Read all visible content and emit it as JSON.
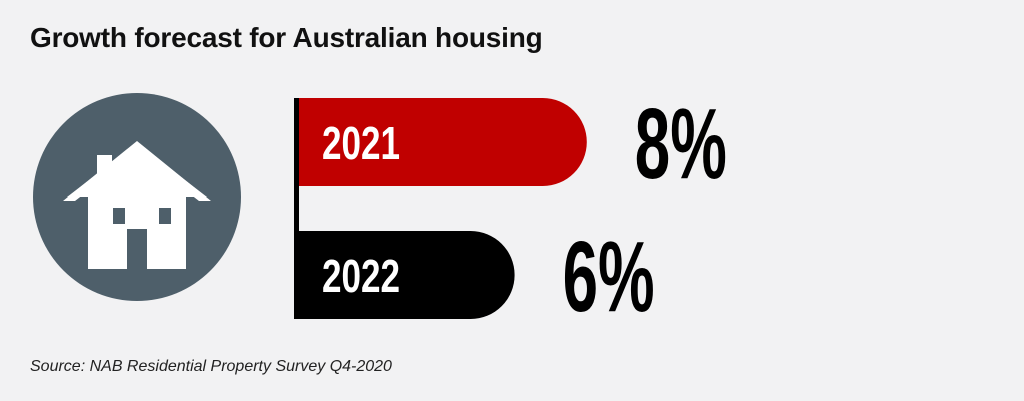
{
  "title": "Growth forecast for Australian housing",
  "source": "Source: NAB Residential Property Survey Q4-2020",
  "icon": "house-icon",
  "colors": {
    "background": "#f2f2f3",
    "circle": "#4e5f6a",
    "house": "#ffffff",
    "bar_2021": "#c00000",
    "bar_2022": "#000000",
    "axis": "#000000",
    "value_text": "#000000",
    "bar_text": "#ffffff"
  },
  "chart_data": {
    "type": "bar",
    "orientation": "horizontal",
    "categories": [
      "2021",
      "2022"
    ],
    "values": [
      8,
      6
    ],
    "value_labels": [
      "8%",
      "6%"
    ],
    "title": "Growth forecast for Australian housing",
    "xlabel": "",
    "ylabel": "",
    "grid": false
  }
}
